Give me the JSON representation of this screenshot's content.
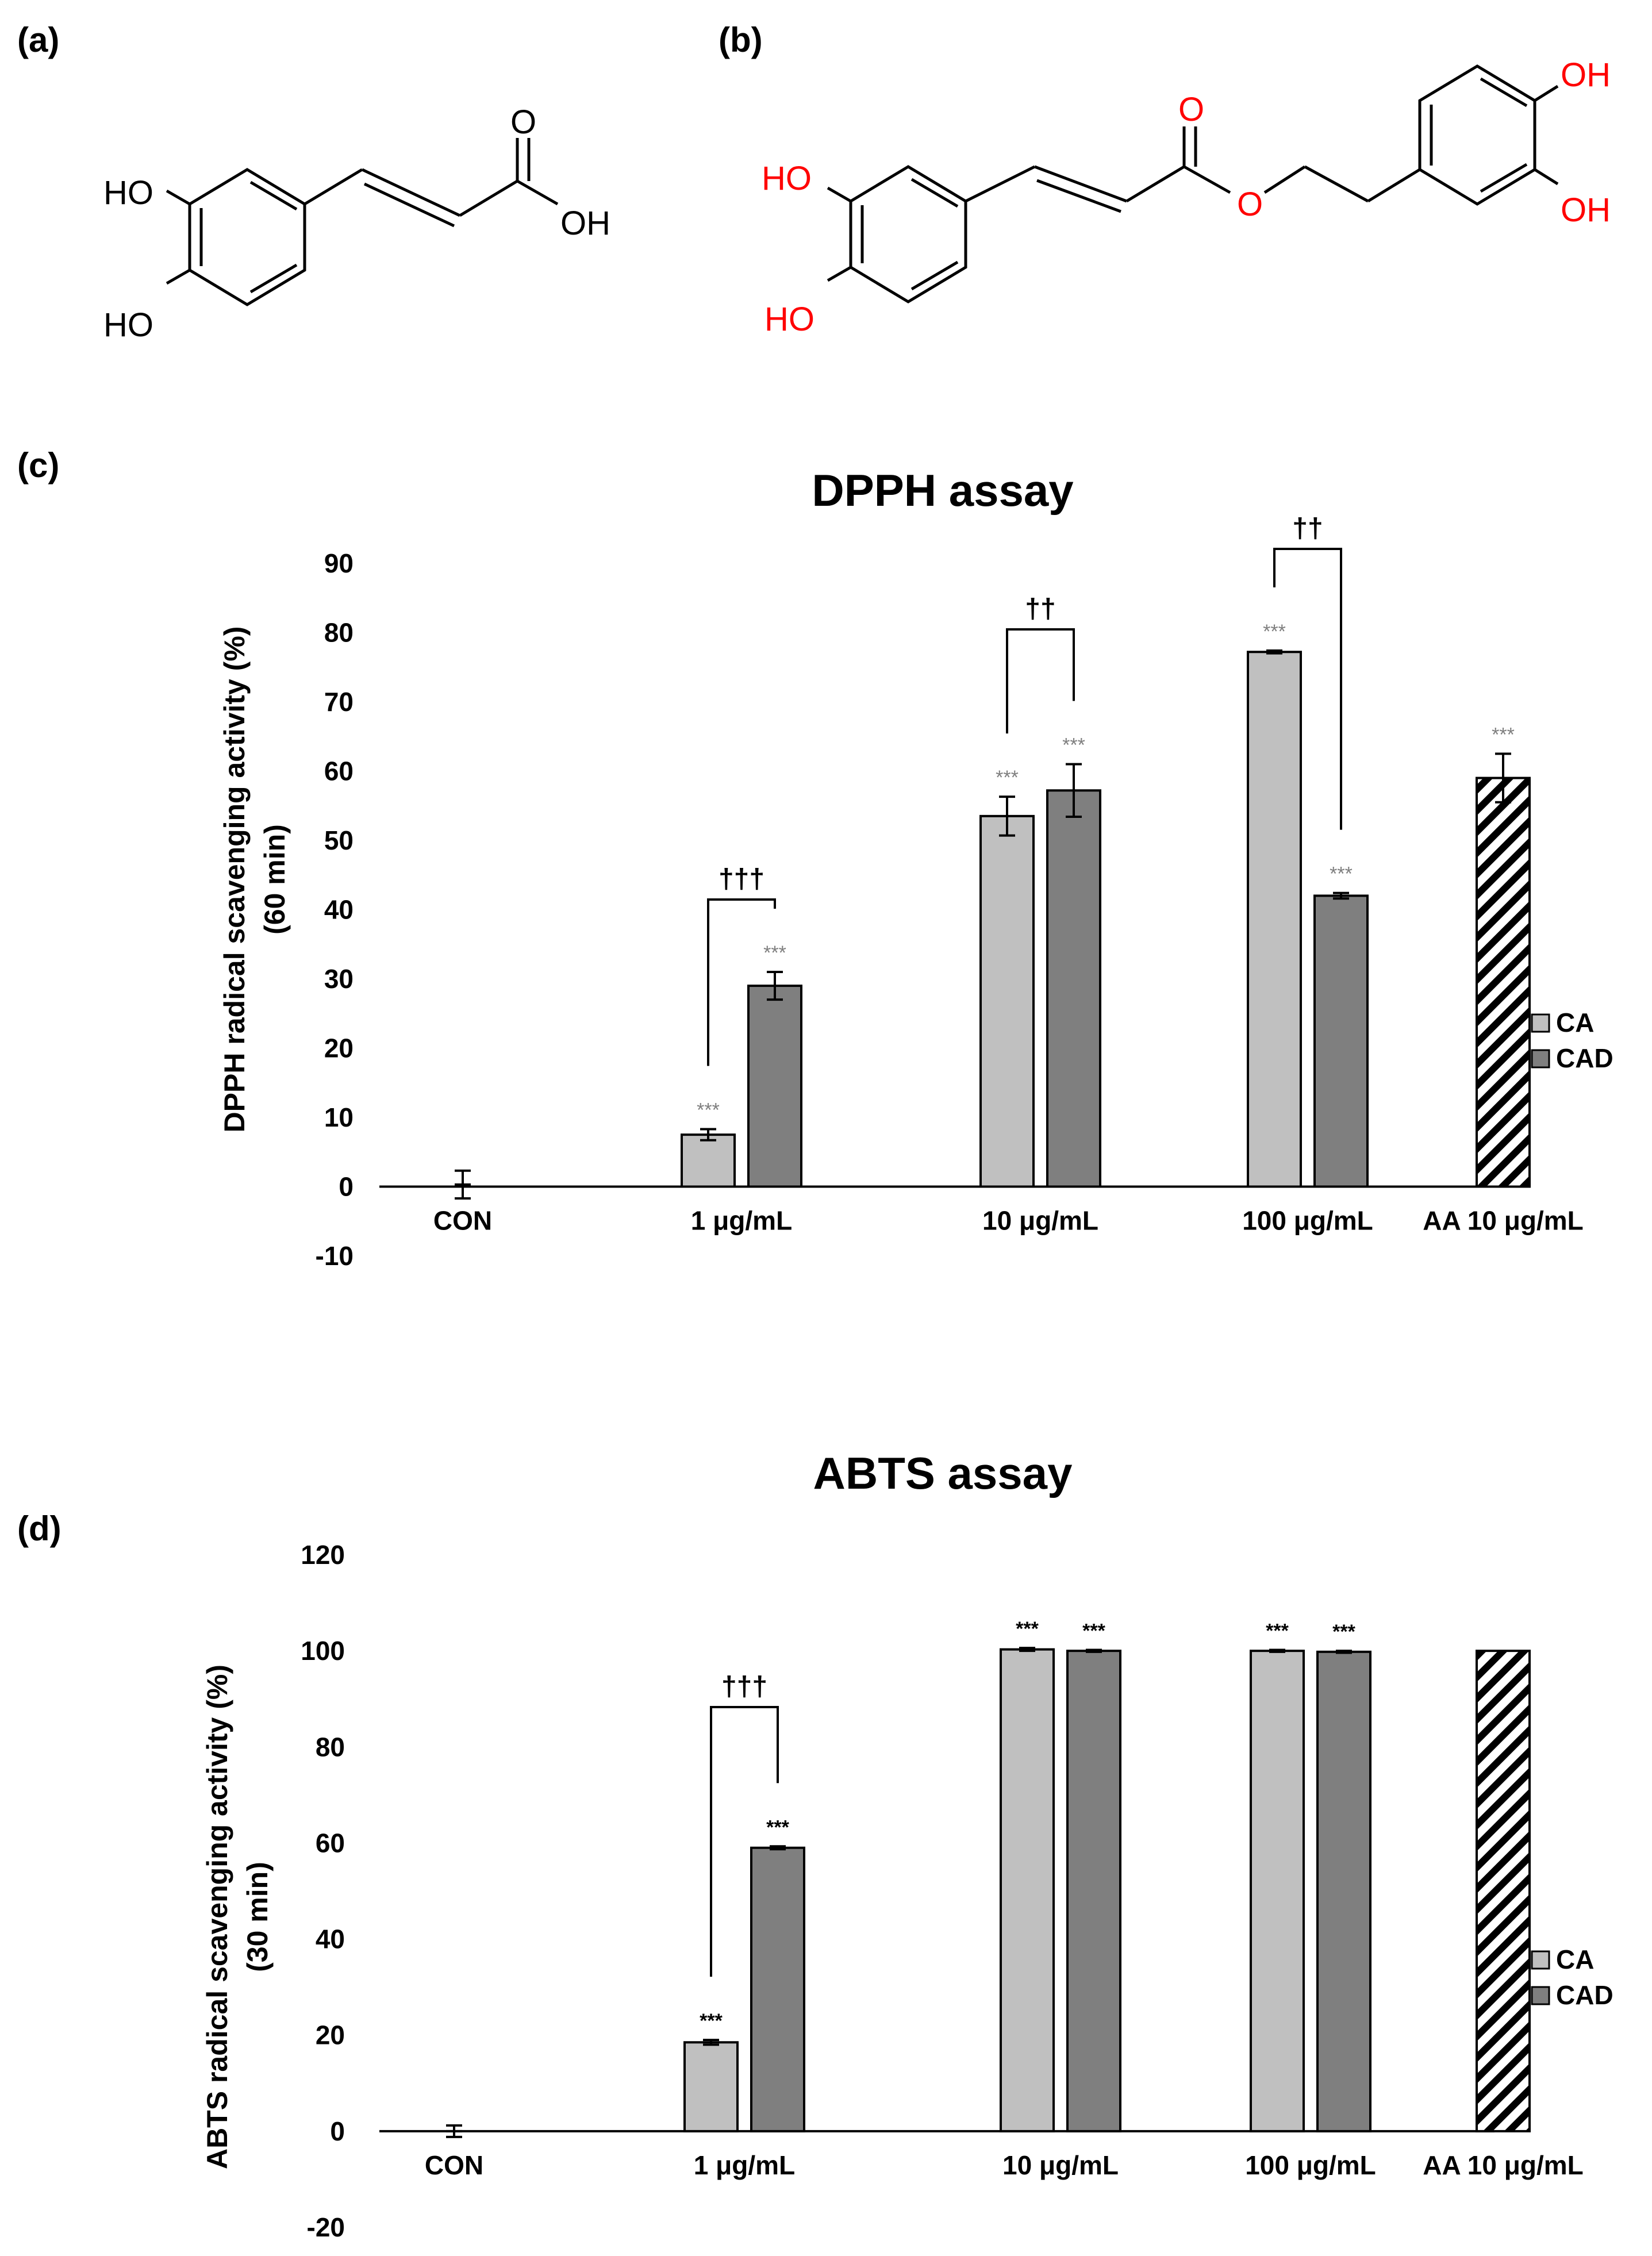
{
  "panels": {
    "a_label": "(a)",
    "b_label": "(b)",
    "c_label": "(c)",
    "d_label": "(d)"
  },
  "molecule_a": {
    "atoms": {
      "ho_top": "HO",
      "ho_bottom": "HO",
      "o_carbonyl": "O",
      "oh_acid": "OH"
    }
  },
  "molecule_b": {
    "atoms": {
      "ho_top": "HO",
      "ho_bottom": "HO",
      "o_carbonyl": "O",
      "o_ester": "O",
      "oh_top": "OH",
      "oh_bottom": "OH"
    },
    "heteroatom_color": "#ff0000"
  },
  "colors": {
    "CA": "#c0c0c0",
    "CAD": "#7f7f7f",
    "AA": "hatched",
    "text": "#000000"
  },
  "chart_data": [
    {
      "type": "bar",
      "title": "DPPH assay",
      "ylabel_line1": "DPPH radical scavenging activity (%)",
      "ylabel_line2": "(60 min)",
      "ylim": [
        -10,
        90
      ],
      "yticks": [
        -10,
        0,
        10,
        20,
        30,
        40,
        50,
        60,
        70,
        80,
        90
      ],
      "categories": [
        "CON",
        "1 μg/mL",
        "10 μg/mL",
        "100 μg/mL",
        "AA 10 μg/mL"
      ],
      "legend_position": "right",
      "series": [
        {
          "name": "CA",
          "values": [
            null,
            7.5,
            53.5,
            77.2,
            null
          ],
          "errors": [
            null,
            0.8,
            2.8,
            0.2,
            null
          ],
          "stars": [
            null,
            "***",
            "***",
            "***",
            null
          ]
        },
        {
          "name": "CAD",
          "values": [
            null,
            29.0,
            57.2,
            42.0,
            null
          ],
          "errors": [
            null,
            2.0,
            3.8,
            0.4,
            null
          ],
          "stars": [
            null,
            "***",
            "***",
            "***",
            null
          ]
        },
        {
          "name": "CON",
          "values": [
            0.3,
            null,
            null,
            null,
            null
          ],
          "errors": [
            2.0,
            null,
            null,
            null,
            null
          ],
          "stars": [
            null,
            null,
            null,
            null,
            null
          ]
        },
        {
          "name": "AA",
          "values": [
            null,
            null,
            null,
            null,
            59.0
          ],
          "errors": [
            null,
            null,
            null,
            null,
            3.5
          ],
          "stars": [
            null,
            null,
            null,
            null,
            "***"
          ]
        }
      ],
      "significance": [
        {
          "category": "1 μg/mL",
          "label": "†††"
        },
        {
          "category": "10 μg/mL",
          "label": "††"
        },
        {
          "category": "100 μg/mL",
          "label": "††"
        }
      ]
    },
    {
      "type": "bar",
      "title": "ABTS assay",
      "ylabel_line1": "ABTS radical scavenging  activity (%)",
      "ylabel_line2": "(30 min)",
      "ylim": [
        -20,
        120
      ],
      "yticks": [
        -20,
        0,
        20,
        40,
        60,
        80,
        100,
        120
      ],
      "categories": [
        "CON",
        "1 μg/mL",
        "10 μg/mL",
        "100 μg/mL",
        "AA 10 μg/mL"
      ],
      "legend_position": "right",
      "series": [
        {
          "name": "CA",
          "values": [
            null,
            18.5,
            100.3,
            100.0,
            null
          ],
          "errors": [
            null,
            0.5,
            0.3,
            0.2,
            null
          ],
          "stars": [
            null,
            "***",
            "***",
            "***",
            null
          ]
        },
        {
          "name": "CAD",
          "values": [
            null,
            59.0,
            100.0,
            99.8,
            null
          ],
          "errors": [
            null,
            0.3,
            0.2,
            0.2,
            null
          ],
          "stars": [
            null,
            "***",
            "***",
            "***",
            null
          ]
        },
        {
          "name": "CON",
          "values": [
            0.0,
            null,
            null,
            null,
            null
          ],
          "errors": [
            1.2,
            null,
            null,
            null,
            null
          ],
          "stars": [
            null,
            null,
            null,
            null,
            null
          ]
        },
        {
          "name": "AA",
          "values": [
            null,
            null,
            null,
            null,
            100.0
          ],
          "errors": [
            null,
            null,
            null,
            null,
            0
          ],
          "stars": [
            null,
            null,
            null,
            null,
            null
          ]
        }
      ],
      "significance": [
        {
          "category": "1 μg/mL",
          "label": "†††"
        }
      ]
    }
  ]
}
